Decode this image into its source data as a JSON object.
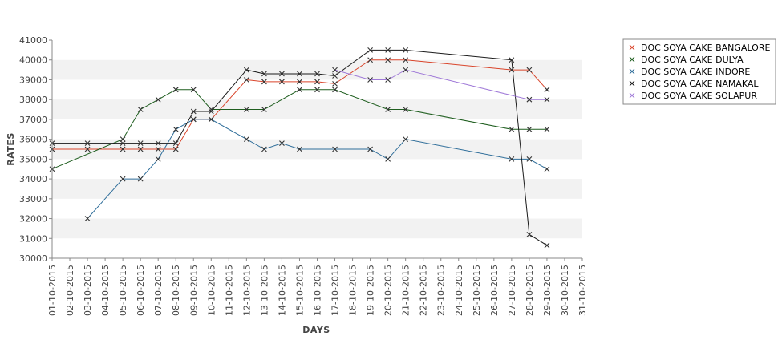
{
  "chart_data": {
    "type": "line",
    "title": "",
    "xlabel": "DAYS",
    "ylabel": "RATES",
    "ylim": [
      30000,
      41000
    ],
    "yticks": [
      30000,
      31000,
      32000,
      33000,
      34000,
      35000,
      36000,
      37000,
      38000,
      39000,
      40000,
      41000
    ],
    "categories": [
      "01-10-2015",
      "02-10-2015",
      "03-10-2015",
      "04-10-2015",
      "05-10-2015",
      "06-10-2015",
      "07-10-2015",
      "08-10-2015",
      "09-10-2015",
      "10-10-2015",
      "11-10-2015",
      "12-10-2015",
      "13-10-2015",
      "14-10-2015",
      "15-10-2015",
      "16-10-2015",
      "17-10-2015",
      "18-10-2015",
      "19-10-2015",
      "20-10-2015",
      "21-10-2015",
      "22-10-2015",
      "23-10-2015",
      "24-10-2015",
      "25-10-2015",
      "26-10-2015",
      "27-10-2015",
      "28-10-2015",
      "29-10-2015",
      "30-10-2015",
      "31-10-2015"
    ],
    "grid": true,
    "legend_position": "right",
    "series": [
      {
        "name": "DOC SOYA CAKE BANGALORE",
        "color": "#d9442a",
        "x": [
          "01-10-2015",
          "03-10-2015",
          "05-10-2015",
          "06-10-2015",
          "07-10-2015",
          "08-10-2015",
          "09-10-2015",
          "10-10-2015",
          "12-10-2015",
          "13-10-2015",
          "14-10-2015",
          "15-10-2015",
          "16-10-2015",
          "17-10-2015",
          "19-10-2015",
          "20-10-2015",
          "21-10-2015",
          "27-10-2015",
          "28-10-2015",
          "29-10-2015"
        ],
        "values": [
          35500,
          35500,
          35500,
          35500,
          35500,
          35500,
          37000,
          37000,
          39000,
          38900,
          38900,
          38900,
          38900,
          38800,
          40000,
          40000,
          40000,
          39500,
          39500,
          38500
        ]
      },
      {
        "name": "DOC SOYA CAKE DULYA",
        "color": "#1f5e1f",
        "x": [
          "01-10-2015",
          "05-10-2015",
          "06-10-2015",
          "07-10-2015",
          "08-10-2015",
          "09-10-2015",
          "10-10-2015",
          "12-10-2015",
          "13-10-2015",
          "15-10-2015",
          "16-10-2015",
          "17-10-2015",
          "20-10-2015",
          "21-10-2015",
          "27-10-2015",
          "28-10-2015",
          "29-10-2015"
        ],
        "values": [
          34500,
          36000,
          37500,
          38000,
          38500,
          38500,
          37500,
          37500,
          37500,
          38500,
          38500,
          38500,
          37500,
          37500,
          36500,
          36500,
          36500
        ]
      },
      {
        "name": "DOC SOYA CAKE INDORE",
        "color": "#2f6e9a",
        "x": [
          "03-10-2015",
          "05-10-2015",
          "06-10-2015",
          "07-10-2015",
          "08-10-2015",
          "09-10-2015",
          "10-10-2015",
          "12-10-2015",
          "13-10-2015",
          "14-10-2015",
          "15-10-2015",
          "17-10-2015",
          "19-10-2015",
          "20-10-2015",
          "21-10-2015",
          "27-10-2015",
          "28-10-2015",
          "29-10-2015"
        ],
        "values": [
          32000,
          34000,
          34000,
          35000,
          36500,
          37000,
          37000,
          36000,
          35500,
          35800,
          35500,
          35500,
          35500,
          35000,
          36000,
          35000,
          35000,
          34500
        ]
      },
      {
        "name": "DOC SOYA CAKE NAMAKAL",
        "color": "#1a1a1a",
        "x": [
          "01-10-2015",
          "03-10-2015",
          "05-10-2015",
          "06-10-2015",
          "07-10-2015",
          "08-10-2015",
          "09-10-2015",
          "10-10-2015",
          "12-10-2015",
          "13-10-2015",
          "14-10-2015",
          "15-10-2015",
          "16-10-2015",
          "17-10-2015",
          "19-10-2015",
          "20-10-2015",
          "21-10-2015",
          "27-10-2015",
          "28-10-2015",
          "29-10-2015"
        ],
        "values": [
          35800,
          35800,
          35800,
          35800,
          35800,
          35800,
          37400,
          37400,
          39500,
          39300,
          39300,
          39300,
          39300,
          39200,
          40500,
          40500,
          40500,
          40000,
          31200,
          30650
        ]
      },
      {
        "name": "DOC SOYA CAKE SOLAPUR",
        "color": "#a07ad8",
        "x": [
          "17-10-2015",
          "19-10-2015",
          "20-10-2015",
          "21-10-2015",
          "28-10-2015",
          "29-10-2015"
        ],
        "values": [
          39500,
          39000,
          39000,
          39500,
          38000,
          38000
        ]
      }
    ]
  }
}
